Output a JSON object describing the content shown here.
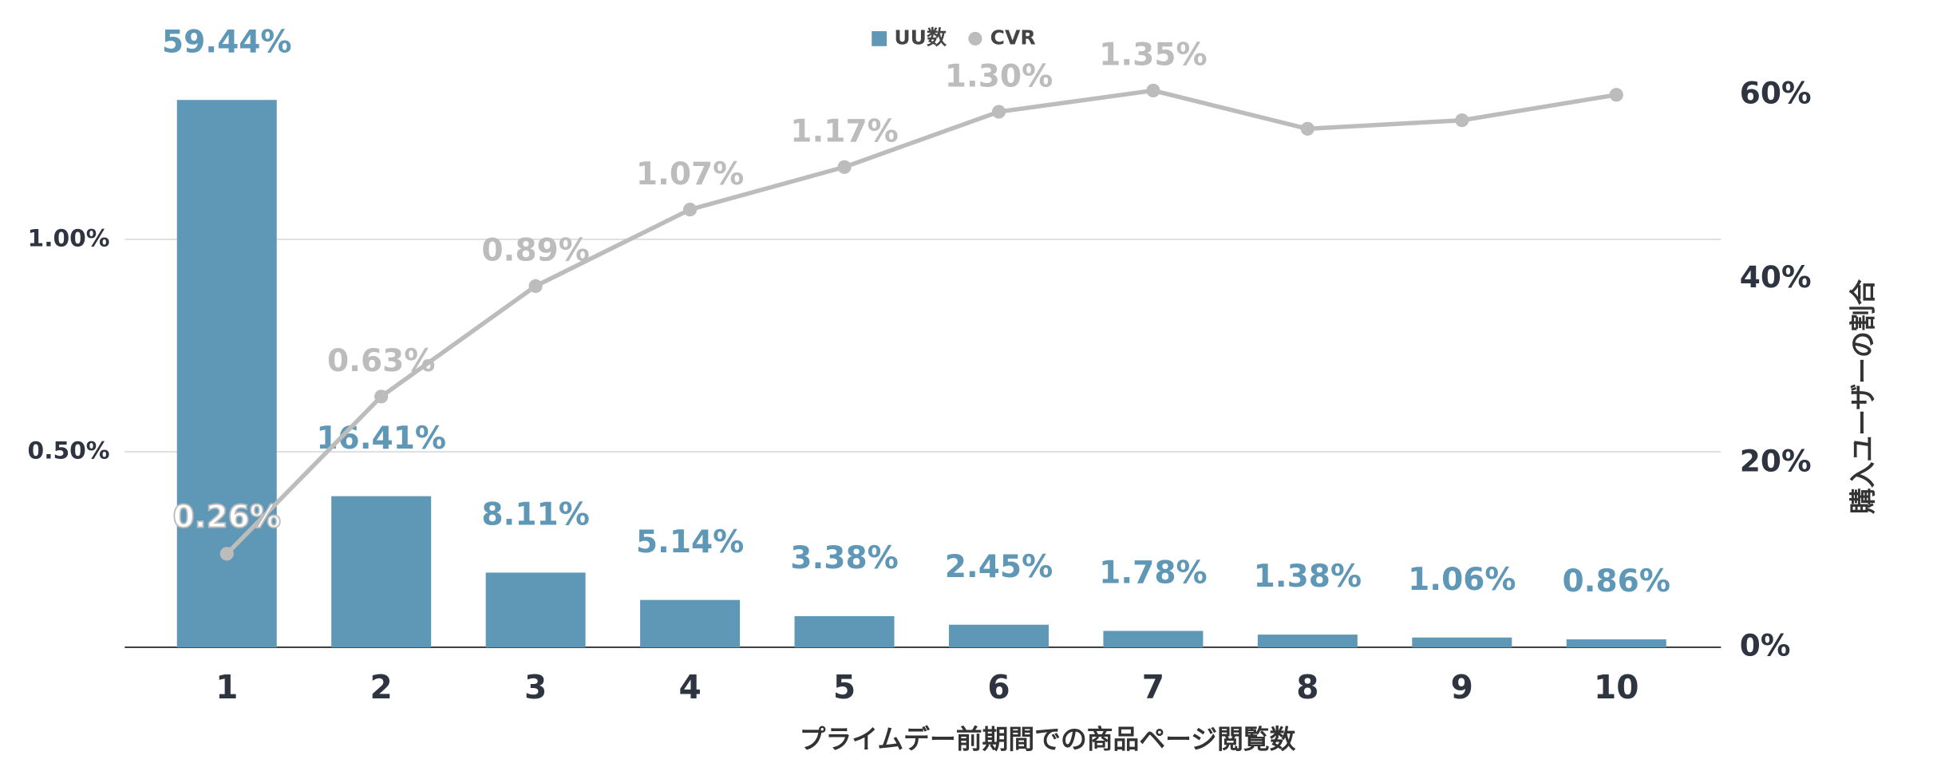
{
  "chart_data": {
    "type": "bar",
    "xlabel": "プライムデー前期間での商品ページ閲覧数",
    "ylabel_right": "購入ユーザーの割合",
    "categories": [
      "1",
      "2",
      "3",
      "4",
      "5",
      "6",
      "7",
      "8",
      "9",
      "10"
    ],
    "series": [
      {
        "name": "UU数",
        "type": "bar",
        "axis": "y2",
        "color": "#5f97b7",
        "values": [
          59.44,
          16.41,
          8.11,
          5.14,
          3.38,
          2.45,
          1.78,
          1.38,
          1.06,
          0.86
        ],
        "value_labels": [
          "59.44%",
          "16.41%",
          "8.11%",
          "5.14%",
          "3.38%",
          "2.45%",
          "1.78%",
          "1.38%",
          "1.06%",
          "0.86%"
        ]
      },
      {
        "name": "CVR",
        "type": "line",
        "color": "#bcbcbc",
        "values": [
          0.26,
          0.63,
          0.89,
          1.07,
          1.17,
          1.3,
          1.35,
          1.26,
          1.28,
          1.34
        ],
        "value_labels": [
          "0.26%",
          "0.63%",
          "0.89%",
          "1.07%",
          "1.17%",
          "1.30%",
          "1.35%",
          null,
          null,
          null
        ]
      }
    ],
    "ylim": [
      0.04,
      1.34
    ],
    "yticks": [
      {
        "value": 0.5,
        "label": "0.50%"
      },
      {
        "value": 1,
        "label": "1.00%"
      }
    ],
    "y2lim": [
      0,
      60
    ],
    "y2ticks": [
      {
        "value": 0,
        "label": "0%"
      },
      {
        "value": 20,
        "label": "20%"
      },
      {
        "value": 40,
        "label": "40%"
      },
      {
        "value": 60,
        "label": "60%"
      }
    ],
    "grid": true,
    "legend": "top"
  }
}
